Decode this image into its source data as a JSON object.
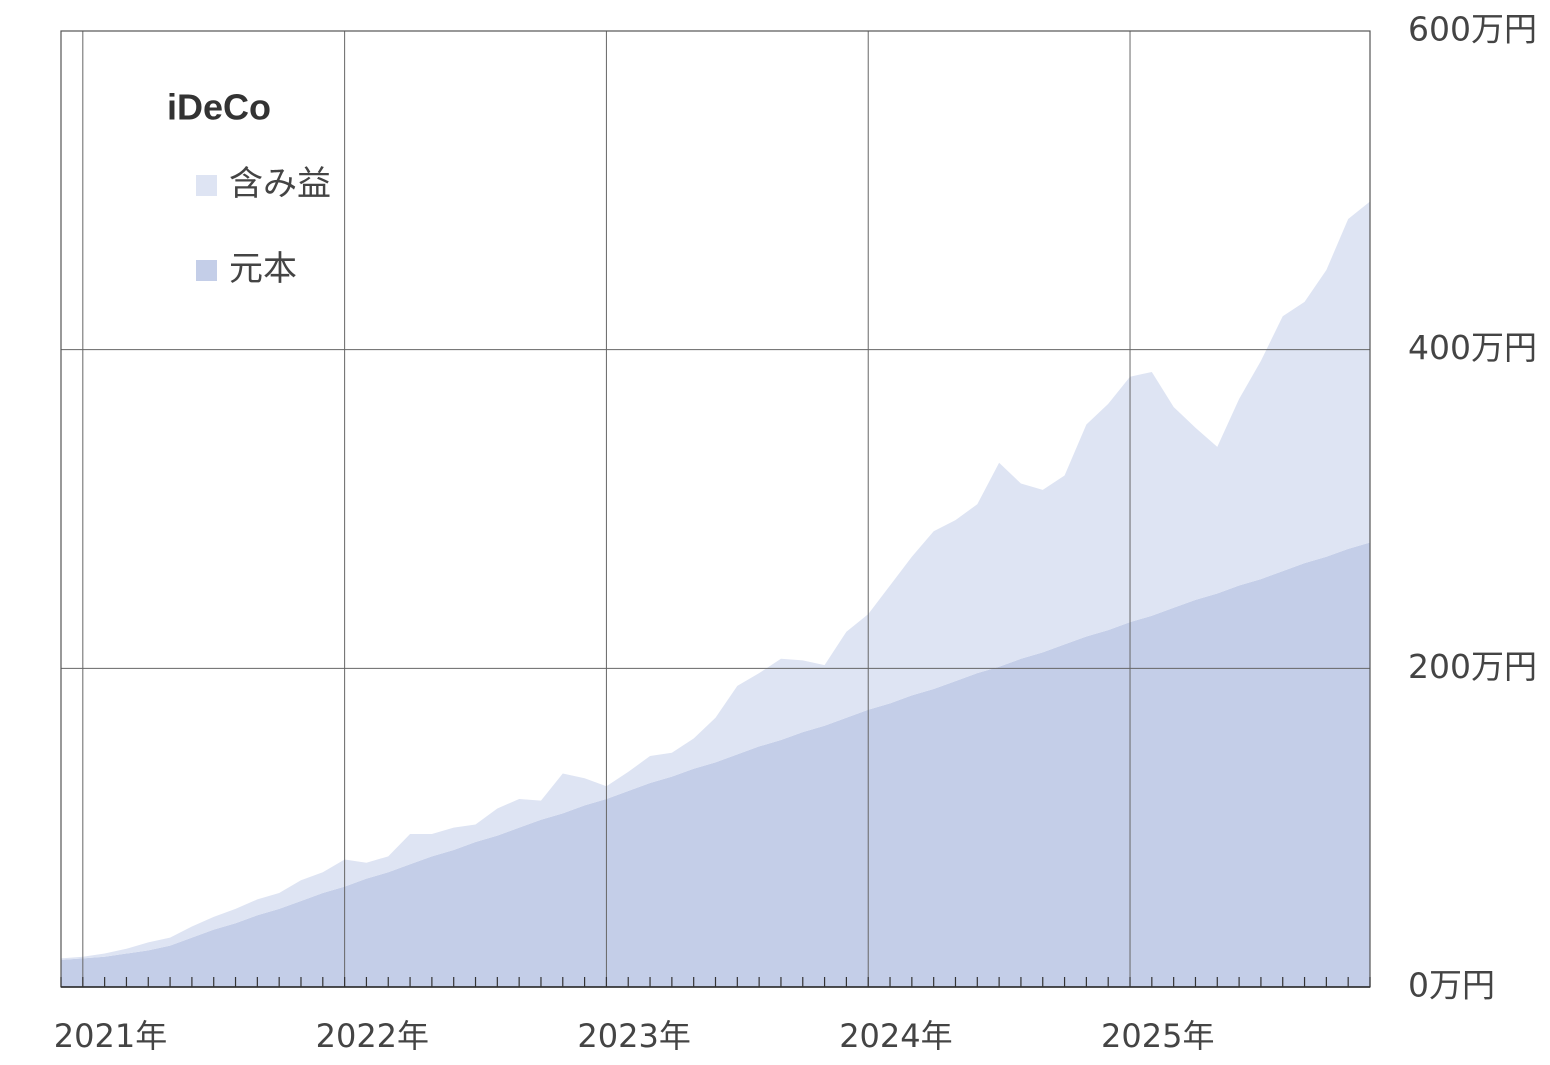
{
  "chart_data": {
    "type": "area",
    "stacked": true,
    "title": "",
    "xlabel": "",
    "ylabel": "",
    "xlim": [
      "2020-12",
      "2025-12"
    ],
    "ylim": [
      0,
      600
    ],
    "grid": true,
    "y_axis_side": "right",
    "x_ticks": [
      {
        "at": "2021-01",
        "label": "2021年"
      },
      {
        "at": "2022-01",
        "label": "2022年"
      },
      {
        "at": "2023-01",
        "label": "2023年"
      },
      {
        "at": "2024-01",
        "label": "2024年"
      },
      {
        "at": "2025-01",
        "label": "2025年"
      }
    ],
    "y_ticks": [
      {
        "value": 0,
        "label": "0万円"
      },
      {
        "value": 200,
        "label": "200万円"
      },
      {
        "value": 400,
        "label": "400万円"
      },
      {
        "value": 600,
        "label": "600万円"
      }
    ],
    "x": [
      "2020-12",
      "2021-01",
      "2021-02",
      "2021-03",
      "2021-04",
      "2021-05",
      "2021-06",
      "2021-07",
      "2021-08",
      "2021-09",
      "2021-10",
      "2021-11",
      "2021-12",
      "2022-01",
      "2022-02",
      "2022-03",
      "2022-04",
      "2022-05",
      "2022-06",
      "2022-07",
      "2022-08",
      "2022-09",
      "2022-10",
      "2022-11",
      "2022-12",
      "2023-01",
      "2023-02",
      "2023-03",
      "2023-04",
      "2023-05",
      "2023-06",
      "2023-07",
      "2023-08",
      "2023-09",
      "2023-10",
      "2023-11",
      "2023-12",
      "2024-01",
      "2024-02",
      "2024-03",
      "2024-04",
      "2024-05",
      "2024-06",
      "2024-07",
      "2024-08",
      "2024-09",
      "2024-10",
      "2024-11",
      "2024-12",
      "2025-01",
      "2025-02",
      "2025-03",
      "2025-04",
      "2025-05",
      "2025-06",
      "2025-07",
      "2025-08",
      "2025-09",
      "2025-10",
      "2025-11",
      "2025-12"
    ],
    "series": [
      {
        "name": "元本",
        "color": "#c4cee8",
        "values": [
          17,
          18,
          19,
          21,
          23,
          26,
          31,
          36,
          40,
          45,
          49,
          54,
          59,
          63,
          68,
          72,
          77,
          82,
          86,
          91,
          95,
          100,
          105,
          109,
          114,
          118,
          123,
          128,
          132,
          137,
          141,
          146,
          151,
          155,
          160,
          164,
          169,
          174,
          178,
          183,
          187,
          192,
          197,
          201,
          206,
          210,
          215,
          220,
          224,
          229,
          233,
          238,
          243,
          247,
          252,
          256,
          261,
          266,
          270,
          275,
          279
        ]
      },
      {
        "name": "含み益",
        "color": "#dee4f3",
        "values": [
          1,
          1,
          2,
          3,
          5,
          5,
          7,
          8,
          9,
          10,
          10,
          13,
          13,
          17,
          10,
          10,
          19,
          14,
          14,
          11,
          17,
          18,
          12,
          25,
          17,
          8,
          12,
          17,
          15,
          19,
          28,
          43,
          46,
          51,
          45,
          38,
          54,
          60,
          74,
          87,
          99,
          101,
          106,
          128,
          110,
          102,
          106,
          133,
          142,
          154,
          153,
          126,
          108,
          92,
          117,
          137,
          160,
          164,
          180,
          207,
          214
        ]
      }
    ],
    "legend": {
      "title": "iDeCo",
      "position": "top-left"
    }
  }
}
